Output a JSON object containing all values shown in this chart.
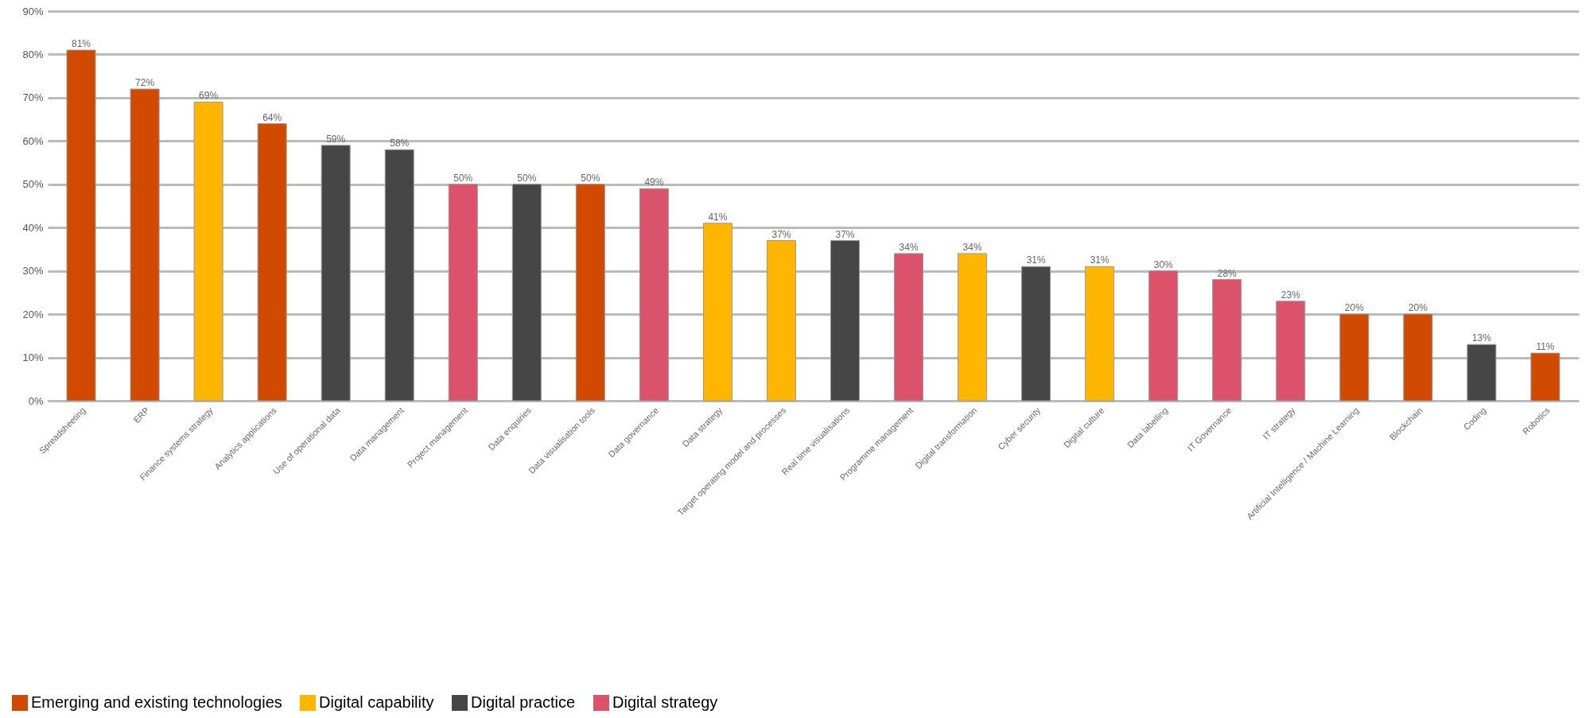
{
  "chart_data": {
    "type": "bar",
    "categories": [
      "Spreadsheeting",
      "ERP",
      "Finance systems strategy",
      "Analytics applications",
      "Use of operational data",
      "Data management",
      "Project management",
      "Data enquiries",
      "Data visualisation tools",
      "Data governance",
      "Data strategy",
      "Target operating model and processes",
      "Real time visualisations",
      "Programme management",
      "Digital transformation",
      "Cyber security",
      "Digital culture",
      "Data labelling",
      "IT Governance",
      "IT strategy",
      "Artificial Intelligence / Machine Learning",
      "Blockchain",
      "Coding",
      "Robotics"
    ],
    "series": [
      {
        "name": "Emerging and existing technologies",
        "color": "#d04a02",
        "values": [
          81,
          72,
          null,
          64,
          null,
          null,
          null,
          null,
          50,
          null,
          null,
          null,
          null,
          null,
          null,
          null,
          null,
          null,
          null,
          null,
          20,
          20,
          null,
          11
        ],
        "value_labels": [
          "81%",
          "72%",
          null,
          "64%",
          null,
          null,
          null,
          null,
          "50%",
          null,
          null,
          null,
          null,
          null,
          null,
          null,
          null,
          null,
          null,
          null,
          "20%",
          "20%",
          null,
          "11%"
        ]
      },
      {
        "name": "Digital capability",
        "color": "#ffb600",
        "values": [
          null,
          null,
          69,
          null,
          null,
          null,
          null,
          null,
          null,
          null,
          41,
          37,
          null,
          null,
          34,
          null,
          31,
          null,
          null,
          null,
          null,
          null,
          null,
          null
        ],
        "value_labels": [
          null,
          null,
          "69%",
          null,
          null,
          null,
          null,
          null,
          null,
          null,
          "41%",
          "37%",
          null,
          null,
          "34%",
          null,
          "31%",
          null,
          null,
          null,
          null,
          null,
          null,
          null
        ]
      },
      {
        "name": "Digital practice",
        "color": "#464646",
        "values": [
          null,
          null,
          null,
          null,
          59,
          58,
          null,
          50,
          null,
          null,
          null,
          null,
          37,
          null,
          null,
          31,
          null,
          null,
          null,
          null,
          null,
          null,
          13,
          null
        ],
        "value_labels": [
          null,
          null,
          null,
          null,
          "59%",
          "58%",
          null,
          "50%",
          null,
          null,
          null,
          null,
          "37%",
          null,
          null,
          "31%",
          null,
          null,
          null,
          null,
          null,
          null,
          "13%",
          null
        ]
      },
      {
        "name": "Digital strategy",
        "color": "#db536a",
        "values": [
          null,
          null,
          null,
          null,
          null,
          null,
          50,
          null,
          null,
          49,
          null,
          null,
          null,
          34,
          null,
          null,
          null,
          30,
          28,
          23,
          null,
          null,
          null,
          null
        ],
        "value_labels": [
          null,
          null,
          null,
          null,
          null,
          null,
          "50%",
          null,
          null,
          "49%",
          null,
          null,
          null,
          "34%",
          null,
          null,
          null,
          "30%",
          "28%",
          "23%",
          null,
          null,
          null,
          null
        ]
      }
    ],
    "ylim": [
      0,
      90
    ],
    "yticks": [
      {
        "value": 0,
        "label": "0%"
      },
      {
        "value": 10,
        "label": "10%"
      },
      {
        "value": 20,
        "label": "20%"
      },
      {
        "value": 30,
        "label": "30%"
      },
      {
        "value": 40,
        "label": "40%"
      },
      {
        "value": 50,
        "label": "50%"
      },
      {
        "value": 60,
        "label": "60%"
      },
      {
        "value": 70,
        "label": "70%"
      },
      {
        "value": 80,
        "label": "80%"
      },
      {
        "value": 90,
        "label": "90%"
      }
    ],
    "grid": "y",
    "legend": "bottom left"
  }
}
